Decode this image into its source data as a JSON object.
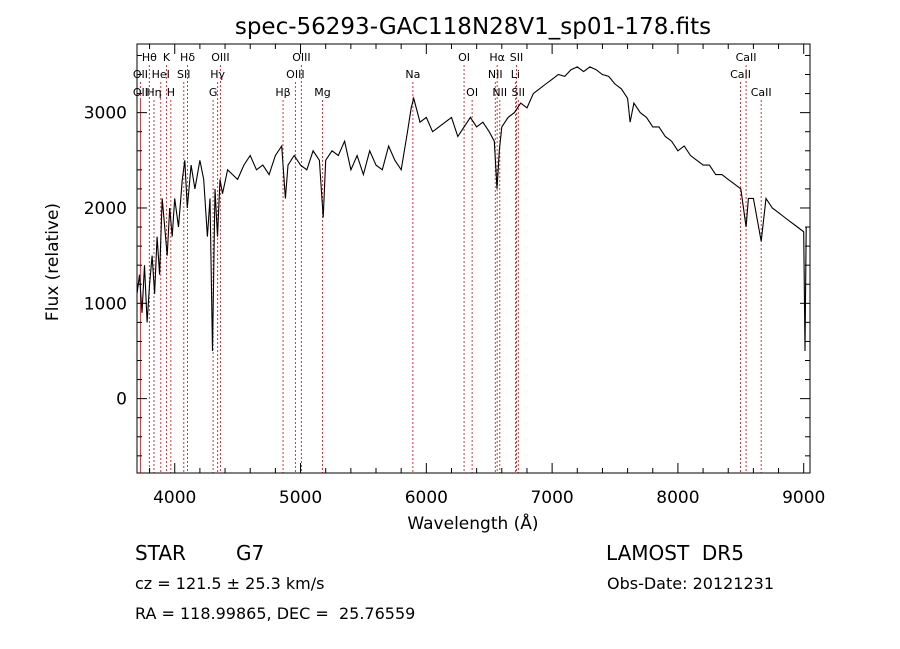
{
  "chart_data": {
    "type": "line",
    "title": "spec-56293-GAC118N28V1_sp01-178.fits",
    "xlabel": "Wavelength (Å)",
    "ylabel": "Flux (relative)",
    "xlim": [
      3700,
      9050
    ],
    "ylim": [
      -780,
      3720
    ],
    "xticks": [
      4000,
      5000,
      6000,
      7000,
      8000,
      9000
    ],
    "yticks": [
      0,
      1000,
      2000,
      3000
    ],
    "grid": false,
    "series": [
      {
        "x": [
          3700,
          3720,
          3740,
          3760,
          3780,
          3800,
          3820,
          3840,
          3860,
          3880,
          3900,
          3920,
          3940,
          3960,
          3980,
          4000,
          4030,
          4060,
          4080,
          4100,
          4130,
          4160,
          4200,
          4230,
          4260,
          4280,
          4300,
          4320,
          4340,
          4360,
          4380,
          4420,
          4460,
          4500,
          4550,
          4600,
          4650,
          4700,
          4750,
          4800,
          4850,
          4880,
          4900,
          4950,
          5000,
          5050,
          5100,
          5150,
          5180,
          5200,
          5250,
          5300,
          5350,
          5400,
          5450,
          5500,
          5550,
          5600,
          5650,
          5700,
          5750,
          5800,
          5850,
          5880,
          5900,
          5950,
          6000,
          6050,
          6100,
          6150,
          6200,
          6250,
          6300,
          6350,
          6400,
          6450,
          6500,
          6540,
          6562,
          6580,
          6600,
          6650,
          6700,
          6750,
          6800,
          6850,
          6900,
          6950,
          7000,
          7050,
          7100,
          7150,
          7200,
          7250,
          7300,
          7350,
          7400,
          7450,
          7500,
          7550,
          7600,
          7620,
          7650,
          7700,
          7750,
          7800,
          7850,
          7900,
          7950,
          8000,
          8050,
          8100,
          8150,
          8200,
          8250,
          8300,
          8350,
          8400,
          8450,
          8500,
          8542,
          8560,
          8600,
          8662,
          8700,
          8750,
          8800,
          8850,
          8900,
          8950,
          9000,
          9010,
          9020
        ],
        "values": [
          1100,
          1300,
          900,
          1400,
          800,
          1200,
          1500,
          1100,
          1700,
          1300,
          2100,
          1800,
          1500,
          2000,
          1700,
          2100,
          1800,
          2300,
          2500,
          2000,
          2450,
          2200,
          2500,
          2300,
          1700,
          2100,
          500,
          2200,
          1700,
          2300,
          2150,
          2400,
          2350,
          2300,
          2450,
          2550,
          2400,
          2450,
          2350,
          2550,
          2650,
          2100,
          2450,
          2550,
          2450,
          2400,
          2600,
          2500,
          1900,
          2500,
          2600,
          2550,
          2700,
          2400,
          2550,
          2350,
          2600,
          2450,
          2400,
          2650,
          2500,
          2400,
          2800,
          3050,
          3150,
          2900,
          2950,
          2800,
          2850,
          2900,
          2950,
          2750,
          2850,
          2950,
          2850,
          2900,
          2800,
          2700,
          2200,
          2600,
          2850,
          2950,
          3000,
          3100,
          3050,
          3200,
          3250,
          3300,
          3350,
          3400,
          3380,
          3450,
          3480,
          3430,
          3480,
          3450,
          3400,
          3380,
          3300,
          3250,
          3150,
          2900,
          3100,
          3000,
          2950,
          2850,
          2850,
          2750,
          2700,
          2600,
          2650,
          2550,
          2500,
          2450,
          2450,
          2350,
          2350,
          2300,
          2250,
          2200,
          1800,
          2100,
          2100,
          1650,
          2100,
          2000,
          1950,
          1900,
          1850,
          1800,
          1750,
          500,
          1800
        ]
      }
    ],
    "lines": [
      {
        "label": "Hθ",
        "x": 3798,
        "row": 1
      },
      {
        "label": "OII",
        "x": 3727,
        "row": 2
      },
      {
        "label": "OII",
        "x": 3727,
        "row": 3
      },
      {
        "label": "Hη",
        "x": 3835,
        "row": 3
      },
      {
        "label": "HeI",
        "x": 3889,
        "row": 2
      },
      {
        "label": "K",
        "x": 3934,
        "row": 1
      },
      {
        "label": "H",
        "x": 3969,
        "row": 3
      },
      {
        "label": "Hδ",
        "x": 4102,
        "row": 1
      },
      {
        "label": "SII",
        "x": 4072,
        "row": 2
      },
      {
        "label": "OIII",
        "x": 4363,
        "row": 1
      },
      {
        "label": "Hγ",
        "x": 4341,
        "row": 2
      },
      {
        "label": "G",
        "x": 4305,
        "row": 3
      },
      {
        "label": "OIII",
        "x": 5007,
        "row": 1
      },
      {
        "label": "OIII",
        "x": 4959,
        "row": 2
      },
      {
        "label": "Hβ",
        "x": 4861,
        "row": 3
      },
      {
        "label": "Mg",
        "x": 5175,
        "row": 3
      },
      {
        "label": "Na",
        "x": 5893,
        "row": 2
      },
      {
        "label": "OI",
        "x": 6300,
        "row": 1
      },
      {
        "label": "OI",
        "x": 6364,
        "row": 3
      },
      {
        "label": "Hα",
        "x": 6563,
        "row": 1
      },
      {
        "label": "NII",
        "x": 6548,
        "row": 2
      },
      {
        "label": "NII",
        "x": 6584,
        "row": 3
      },
      {
        "label": "SII",
        "x": 6717,
        "row": 1
      },
      {
        "label": "Li",
        "x": 6708,
        "row": 2
      },
      {
        "label": "SII",
        "x": 6731,
        "row": 3
      },
      {
        "label": "CaII",
        "x": 8542,
        "row": 1
      },
      {
        "label": "CaII",
        "x": 8498,
        "row": 2
      },
      {
        "label": "CaII",
        "x": 8662,
        "row": 3
      }
    ]
  },
  "info": {
    "class_label": "STAR",
    "subclass": "G7",
    "survey": "LAMOST  DR5",
    "cz": "cz = 121.5 ± 25.3 km/s",
    "obs_date": "Obs-Date: 20121231",
    "coords": "RA = 118.99865, DEC =  25.76559"
  }
}
